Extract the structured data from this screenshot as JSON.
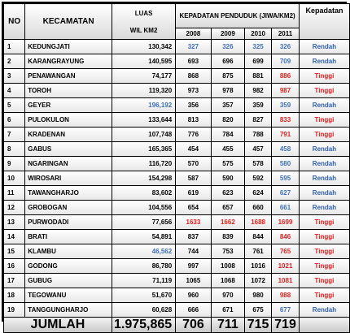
{
  "header": {
    "no": "NO",
    "kecamatan": "KECAMATAN",
    "luas_line1": "LUAS",
    "luas_line2": "WIL KM2",
    "kepadatan_group": "KEPADATAN PENDUDUK (JIWA/KM2)",
    "kategori": "Kepadatan",
    "years": [
      "2008",
      "2009",
      "2010",
      "2011"
    ]
  },
  "colors": {
    "blue": "#3f70b8",
    "red": "#e0201c",
    "black": "#000000",
    "cat_blue": "#2f5fa8",
    "cat_red": "#d81b1b"
  },
  "rows": [
    {
      "no": "1",
      "kec": "KEDUNGJATI",
      "luas": "130,342",
      "luas_color": "black",
      "v": [
        "327",
        "326",
        "325",
        "326"
      ],
      "vc": [
        "blue",
        "blue",
        "blue",
        "blue"
      ],
      "cat": "Rendah",
      "cat_color": "cat_blue"
    },
    {
      "no": "2",
      "kec": "KARANGRAYUNG",
      "luas": "140,595",
      "luas_color": "black",
      "v": [
        "693",
        "696",
        "699",
        "709"
      ],
      "vc": [
        "black",
        "black",
        "black",
        "blue"
      ],
      "cat": "Rendah",
      "cat_color": "cat_blue"
    },
    {
      "no": "3",
      "kec": "PENAWANGAN",
      "luas": "74,177",
      "luas_color": "black",
      "v": [
        "868",
        "875",
        "881",
        "886"
      ],
      "vc": [
        "black",
        "black",
        "black",
        "red"
      ],
      "cat": "Tinggi",
      "cat_color": "cat_red"
    },
    {
      "no": "4",
      "kec": "TOROH",
      "luas": "119,320",
      "luas_color": "black",
      "v": [
        "973",
        "978",
        "982",
        "987"
      ],
      "vc": [
        "black",
        "black",
        "black",
        "red"
      ],
      "cat": "Tinggi",
      "cat_color": "cat_red"
    },
    {
      "no": "5",
      "kec": "GEYER",
      "luas": "196,192",
      "luas_color": "blue",
      "v": [
        "356",
        "357",
        "359",
        "359"
      ],
      "vc": [
        "black",
        "black",
        "black",
        "blue"
      ],
      "cat": "Rendah",
      "cat_color": "cat_blue"
    },
    {
      "no": "6",
      "kec": "PULOKULON",
      "luas": "133,644",
      "luas_color": "black",
      "v": [
        "813",
        "820",
        "827",
        "833"
      ],
      "vc": [
        "black",
        "black",
        "black",
        "red"
      ],
      "cat": "Tinggi",
      "cat_color": "cat_red"
    },
    {
      "no": "7",
      "kec": "KRADENAN",
      "luas": "107,748",
      "luas_color": "black",
      "v": [
        "776",
        "784",
        "788",
        "791"
      ],
      "vc": [
        "black",
        "black",
        "black",
        "red"
      ],
      "cat": "Tinggi",
      "cat_color": "cat_red"
    },
    {
      "no": "8",
      "kec": "GABUS",
      "luas": "165,365",
      "luas_color": "black",
      "v": [
        "454",
        "455",
        "457",
        "458"
      ],
      "vc": [
        "black",
        "black",
        "black",
        "blue"
      ],
      "cat": "Rendah",
      "cat_color": "cat_blue"
    },
    {
      "no": "9",
      "kec": "NGARINGAN",
      "luas": "116,720",
      "luas_color": "black",
      "v": [
        "570",
        "575",
        "578",
        "580"
      ],
      "vc": [
        "black",
        "black",
        "black",
        "blue"
      ],
      "cat": "Rendah",
      "cat_color": "cat_blue"
    },
    {
      "no": "10",
      "kec": "WIROSARI",
      "luas": "154,298",
      "luas_color": "black",
      "v": [
        "587",
        "590",
        "592",
        "595"
      ],
      "vc": [
        "black",
        "black",
        "black",
        "blue"
      ],
      "cat": "Rendah",
      "cat_color": "cat_blue"
    },
    {
      "no": "11",
      "kec": "TAWANGHARJO",
      "luas": "83,602",
      "luas_color": "black",
      "v": [
        "619",
        "623",
        "624",
        "627"
      ],
      "vc": [
        "black",
        "black",
        "black",
        "blue"
      ],
      "cat": "Rendah",
      "cat_color": "cat_blue"
    },
    {
      "no": "12",
      "kec": "GROBOGAN",
      "luas": "104,556",
      "luas_color": "black",
      "v": [
        "654",
        "657",
        "660",
        "661"
      ],
      "vc": [
        "black",
        "black",
        "black",
        "blue"
      ],
      "cat": "Rendah",
      "cat_color": "cat_blue"
    },
    {
      "no": "13",
      "kec": "PURWODADI",
      "luas": "77,656",
      "luas_color": "black",
      "v": [
        "1633",
        "1662",
        "1688",
        "1699"
      ],
      "vc": [
        "red",
        "red",
        "red",
        "red"
      ],
      "cat": "Tinggi",
      "cat_color": "cat_red"
    },
    {
      "no": "14",
      "kec": "BRATI",
      "luas": "54,891",
      "luas_color": "black",
      "v": [
        "837",
        "839",
        "844",
        "846"
      ],
      "vc": [
        "black",
        "black",
        "black",
        "red"
      ],
      "cat": "Tinggi",
      "cat_color": "cat_red"
    },
    {
      "no": "15",
      "kec": "KLAMBU",
      "luas": "46,562",
      "luas_color": "blue",
      "v": [
        "744",
        "753",
        "761",
        "765"
      ],
      "vc": [
        "black",
        "black",
        "black",
        "red"
      ],
      "cat": "Tinggi",
      "cat_color": "cat_red"
    },
    {
      "no": "16",
      "kec": "GODONG",
      "luas": "86,780",
      "luas_color": "black",
      "v": [
        "997",
        "1008",
        "1016",
        "1021"
      ],
      "vc": [
        "black",
        "black",
        "black",
        "red"
      ],
      "cat": "Tinggi",
      "cat_color": "cat_red"
    },
    {
      "no": "17",
      "kec": "GUBUG",
      "luas": "71,119",
      "luas_color": "black",
      "v": [
        "1065",
        "1068",
        "1072",
        "1081"
      ],
      "vc": [
        "black",
        "black",
        "black",
        "red"
      ],
      "cat": "Tinggi",
      "cat_color": "cat_red"
    },
    {
      "no": "18",
      "kec": "TEGOWANU",
      "luas": "51,670",
      "luas_color": "black",
      "v": [
        "960",
        "970",
        "980",
        "988"
      ],
      "vc": [
        "black",
        "black",
        "black",
        "red"
      ],
      "cat": "Tinggi",
      "cat_color": "cat_red"
    },
    {
      "no": "19",
      "kec": "TANGGUNGHARJO",
      "luas": "60,628",
      "luas_color": "black",
      "v": [
        "666",
        "671",
        "675",
        "677"
      ],
      "vc": [
        "black",
        "black",
        "black",
        "blue"
      ],
      "cat": "Rendah",
      "cat_color": "cat_blue"
    }
  ],
  "total": {
    "label": "JUMLAH",
    "luas": "1.975,865",
    "v": [
      "706",
      "711",
      "715",
      "719"
    ]
  }
}
